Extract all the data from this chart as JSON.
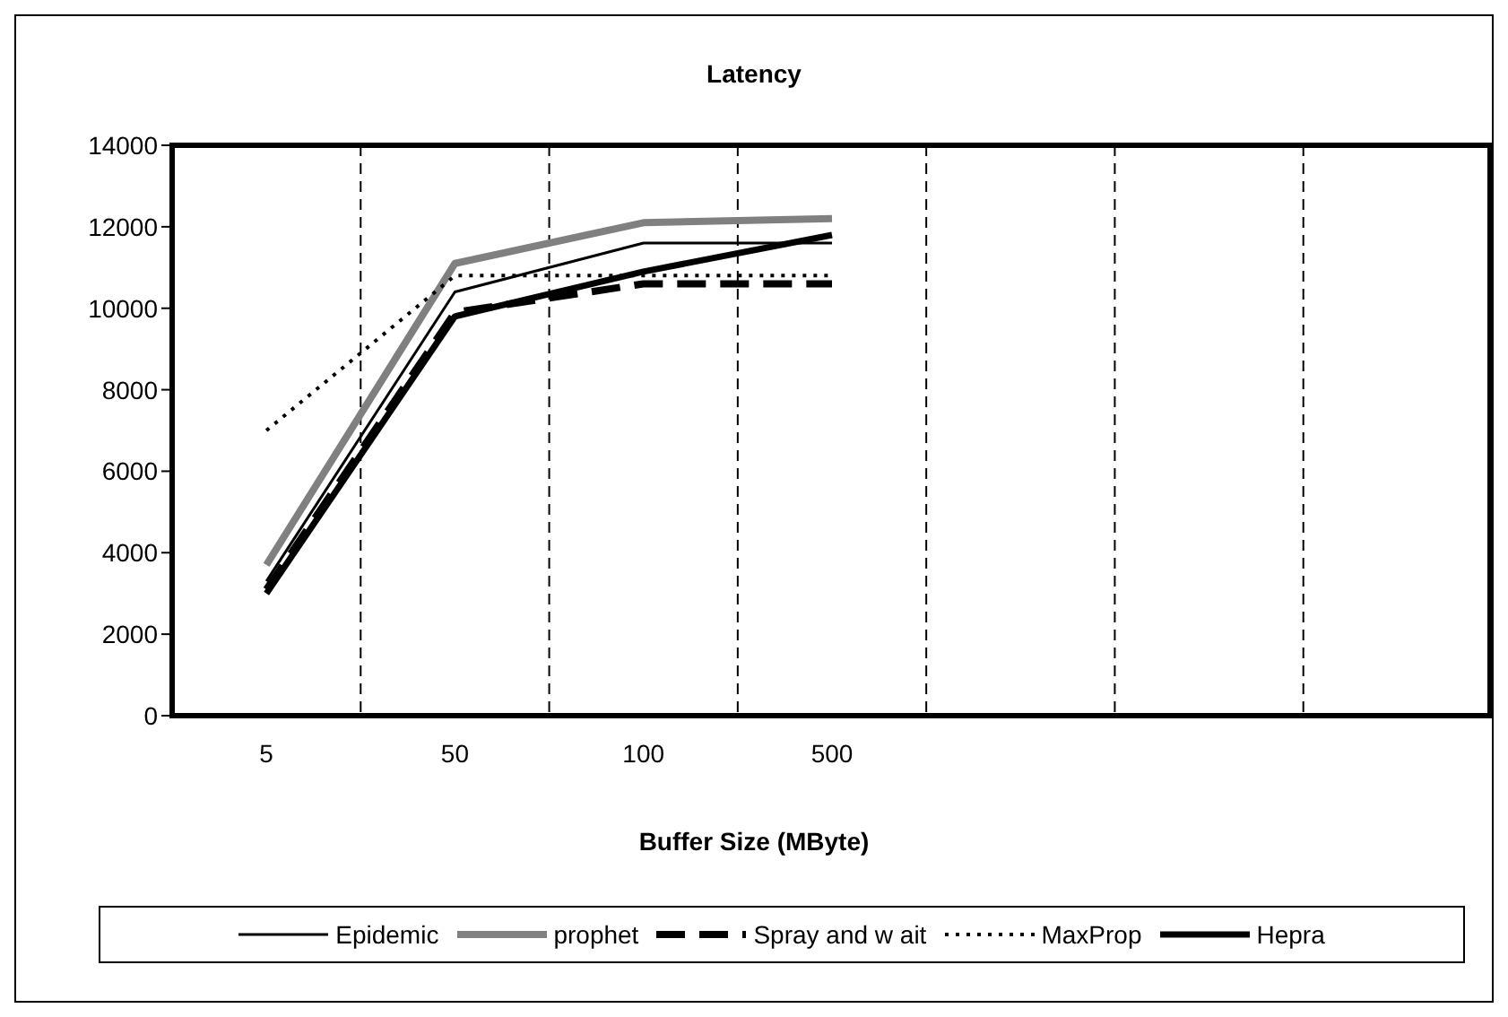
{
  "chart_data": {
    "type": "line",
    "title": "Latency",
    "xlabel": "Buffer Size (MByte)",
    "categories": [
      "5",
      "50",
      "100",
      "500",
      null,
      null,
      null
    ],
    "ylim": [
      0,
      14000
    ],
    "yticks": [
      0,
      2000,
      4000,
      6000,
      8000,
      10000,
      12000,
      14000
    ],
    "grid": "x",
    "legend": "bottom",
    "marker": "none",
    "series": [
      {
        "name": "Epidemic",
        "color": "#000000",
        "line_style": "solid",
        "values": [
          3300,
          10400,
          11600,
          11600,
          null,
          null,
          null
        ]
      },
      {
        "name": "prophet",
        "color": "#808080",
        "line_style": "solid",
        "values": [
          3700,
          11100,
          12100,
          12200,
          null,
          null,
          null
        ]
      },
      {
        "name": "Spray and w ait",
        "color": "#000000",
        "line_style": "dashed",
        "values": [
          3100,
          9900,
          10600,
          10600,
          null,
          null,
          null
        ]
      },
      {
        "name": "MaxProp",
        "color": "#000000",
        "line_style": "dotted",
        "values": [
          7000,
          10800,
          10800,
          10800,
          null,
          null,
          null
        ]
      },
      {
        "name": "Hepra",
        "color": "#000000",
        "line_style": "solid",
        "values": [
          3000,
          9800,
          10900,
          11800,
          null,
          null,
          null
        ]
      }
    ]
  }
}
